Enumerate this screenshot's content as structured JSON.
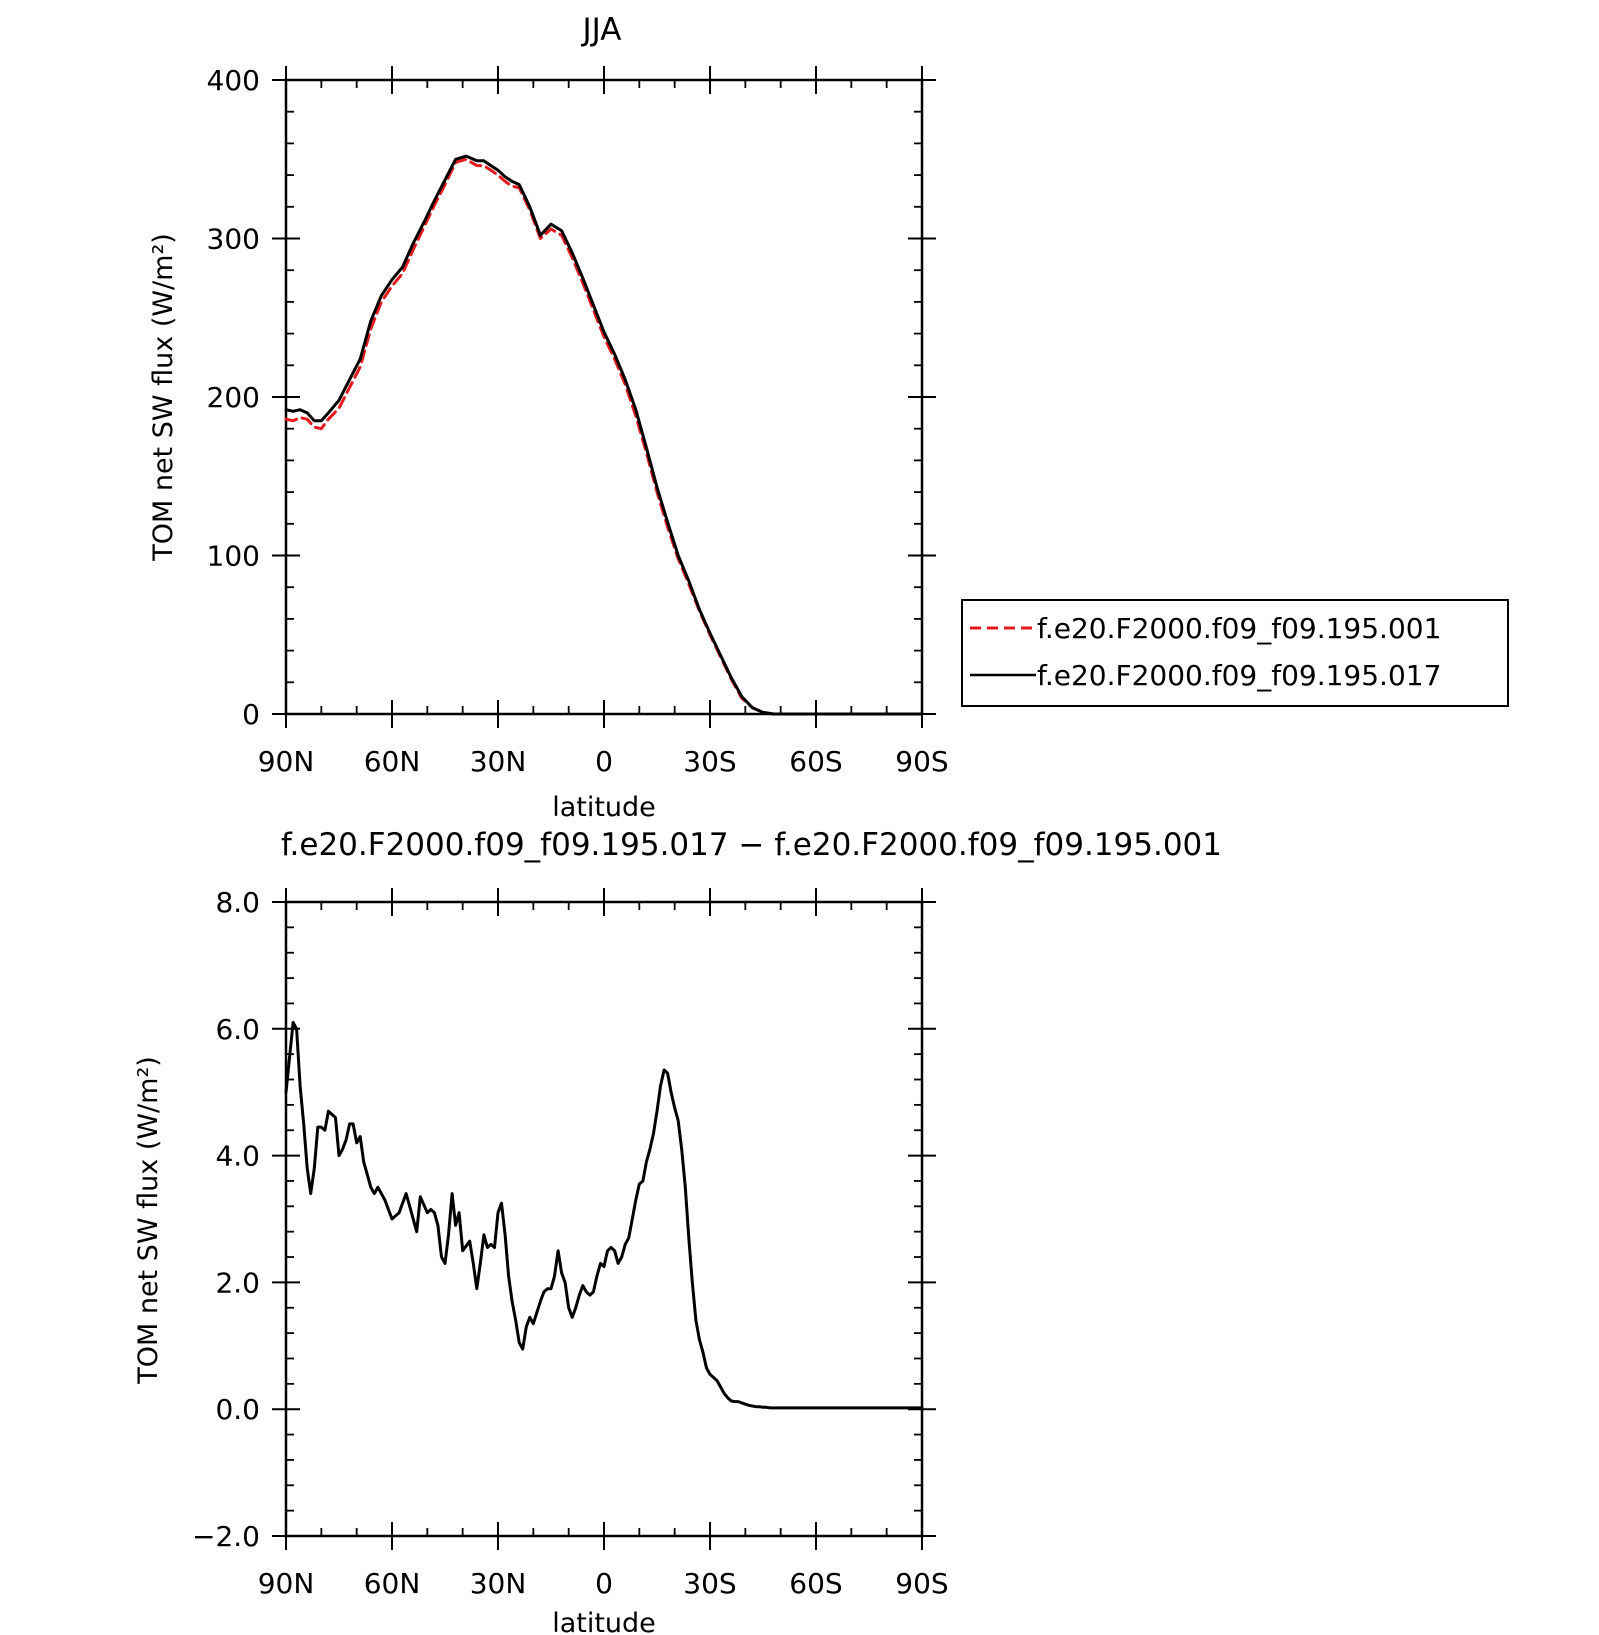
{
  "chart_data": [
    {
      "type": "line",
      "title": "JJA",
      "xlabel": "latitude",
      "ylabel": "TOM net SW flux (W/m²)",
      "xlim": [
        90,
        -90
      ],
      "ylim": [
        0,
        400
      ],
      "xticks": [
        90,
        60,
        30,
        0,
        -30,
        -60,
        -90
      ],
      "xtick_labels": [
        "90N",
        "60N",
        "30N",
        "0",
        "30S",
        "60S",
        "90S"
      ],
      "yticks": [
        0,
        100,
        200,
        300,
        400
      ],
      "ytick_labels": [
        "0",
        "100",
        "200",
        "300",
        "400"
      ],
      "grid": false,
      "legend_position": "outside-right",
      "series": [
        {
          "name": "f.e20.F2000.f09_f09.195.001",
          "color": "#e41a1c",
          "dash": true,
          "x": [
            90,
            88,
            86,
            84,
            82,
            80,
            78,
            75,
            72,
            69,
            66,
            63,
            60,
            57,
            54,
            51,
            48,
            45,
            42,
            39,
            36,
            34,
            32,
            30,
            28,
            26,
            24,
            21,
            18,
            15,
            12,
            9,
            6,
            3,
            0,
            -3,
            -6,
            -9,
            -12,
            -15,
            -18,
            -21,
            -24,
            -27,
            -30,
            -33,
            -36,
            -39,
            -42,
            -45,
            -48,
            -51,
            -54,
            -57,
            -60,
            -63,
            -66,
            -69,
            -72,
            -75,
            -78,
            -81,
            -84,
            -87,
            -90
          ],
          "y": [
            186,
            185,
            187,
            186,
            181,
            180,
            186,
            193,
            206,
            219,
            243,
            260,
            270,
            278,
            293,
            307,
            321,
            334,
            348,
            350,
            346,
            346,
            343,
            340,
            336,
            333,
            332,
            318,
            300,
            306,
            302,
            288,
            272,
            255,
            238,
            224,
            208,
            188,
            165,
            140,
            118,
            98,
            82,
            65,
            50,
            36,
            22,
            10,
            4,
            1,
            0,
            0,
            0,
            0,
            0,
            0,
            0,
            0,
            0,
            0,
            0,
            0,
            0,
            0,
            0
          ]
        },
        {
          "name": "f.e20.F2000.f09_f09.195.017",
          "color": "#000000",
          "dash": false,
          "x": [
            90,
            88,
            86,
            84,
            82,
            80,
            78,
            75,
            72,
            69,
            66,
            63,
            60,
            57,
            54,
            51,
            48,
            45,
            42,
            39,
            36,
            34,
            32,
            30,
            28,
            26,
            24,
            21,
            18,
            15,
            12,
            9,
            6,
            3,
            0,
            -3,
            -6,
            -9,
            -12,
            -15,
            -18,
            -21,
            -24,
            -27,
            -30,
            -33,
            -36,
            -39,
            -42,
            -45,
            -48,
            -51,
            -54,
            -57,
            -60,
            -63,
            -66,
            -69,
            -72,
            -75,
            -78,
            -81,
            -84,
            -87,
            -90
          ],
          "y": [
            192,
            191,
            192,
            190,
            185,
            185,
            190,
            198,
            211,
            224,
            248,
            264,
            274,
            282,
            297,
            310,
            324,
            337,
            350,
            352,
            349,
            349,
            346,
            343,
            339,
            336,
            334,
            320,
            302,
            309,
            305,
            291,
            275,
            258,
            241,
            227,
            211,
            192,
            168,
            143,
            121,
            100,
            84,
            66,
            51,
            37,
            23,
            11,
            4,
            1,
            0,
            0,
            0,
            0,
            0,
            0,
            0,
            0,
            0,
            0,
            0,
            0,
            0,
            0,
            0
          ]
        }
      ]
    },
    {
      "type": "line",
      "title": "f.e20.F2000.f09_f09.195.017 − f.e20.F2000.f09_f09.195.001",
      "xlabel": "latitude",
      "ylabel": "TOM net SW flux (W/m²)",
      "xlim": [
        90,
        -90
      ],
      "ylim": [
        -2,
        8
      ],
      "xticks": [
        90,
        60,
        30,
        0,
        -30,
        -60,
        -90
      ],
      "xtick_labels": [
        "90N",
        "60N",
        "30N",
        "0",
        "30S",
        "60S",
        "90S"
      ],
      "yticks": [
        -2,
        0,
        2,
        4,
        6,
        8
      ],
      "ytick_labels": [
        "−2.0",
        "0.0",
        "2.0",
        "4.0",
        "6.0",
        "8.0"
      ],
      "grid": false,
      "series": [
        {
          "color": "#000000",
          "x": [
            90,
            88,
            87,
            86,
            85,
            84,
            83,
            82,
            81,
            80,
            79,
            78,
            77,
            76,
            75,
            74,
            73,
            72,
            71,
            70,
            69,
            68,
            67,
            66,
            65,
            64,
            62,
            60,
            58,
            56,
            55,
            54,
            53,
            52,
            50,
            49,
            48,
            47,
            46,
            45,
            44,
            43,
            42,
            41,
            40,
            38,
            37,
            36,
            35,
            34,
            33,
            32,
            31,
            30,
            29,
            28,
            27,
            26,
            25,
            24,
            23,
            22,
            21,
            20,
            18,
            17,
            16,
            15,
            14,
            13,
            12,
            11,
            10,
            9,
            8,
            7,
            6,
            5,
            4,
            3,
            2,
            1,
            0,
            -1,
            -2,
            -3,
            -4,
            -5,
            -6,
            -7,
            -8,
            -9,
            -10,
            -11,
            -12,
            -13,
            -14,
            -15,
            -16,
            -17,
            -18,
            -19,
            -20,
            -21,
            -22,
            -23,
            -24,
            -25,
            -26,
            -27,
            -28,
            -29,
            -30,
            -31,
            -32,
            -33,
            -34,
            -35,
            -36,
            -37,
            -38,
            -39,
            -40,
            -41,
            -42,
            -43,
            -44,
            -45,
            -46,
            -47,
            -48,
            -49,
            -50,
            -52,
            -54,
            -56,
            -58,
            -60,
            -62,
            -64,
            -66,
            -70,
            -75,
            -80,
            -85,
            -90
          ],
          "y": [
            5.0,
            6.1,
            6.0,
            5.1,
            4.5,
            3.8,
            3.4,
            3.8,
            4.45,
            4.45,
            4.4,
            4.7,
            4.65,
            4.6,
            4.0,
            4.1,
            4.25,
            4.5,
            4.5,
            4.2,
            4.3,
            3.9,
            3.7,
            3.5,
            3.4,
            3.5,
            3.3,
            3.0,
            3.1,
            3.4,
            3.2,
            3.0,
            2.8,
            3.35,
            3.1,
            3.15,
            3.1,
            2.9,
            2.4,
            2.3,
            2.75,
            3.4,
            2.9,
            3.1,
            2.5,
            2.65,
            2.3,
            1.9,
            2.3,
            2.75,
            2.55,
            2.6,
            2.55,
            3.1,
            3.25,
            2.75,
            2.1,
            1.7,
            1.4,
            1.05,
            0.95,
            1.3,
            1.45,
            1.35,
            1.7,
            1.85,
            1.9,
            1.9,
            2.1,
            2.5,
            2.15,
            2.0,
            1.6,
            1.45,
            1.6,
            1.8,
            1.95,
            1.85,
            1.8,
            1.85,
            2.1,
            2.3,
            2.25,
            2.5,
            2.55,
            2.5,
            2.3,
            2.4,
            2.6,
            2.7,
            3.0,
            3.3,
            3.55,
            3.6,
            3.9,
            4.1,
            4.35,
            4.7,
            5.1,
            5.35,
            5.3,
            5.0,
            4.75,
            4.55,
            4.1,
            3.5,
            2.7,
            2.0,
            1.4,
            1.1,
            0.9,
            0.65,
            0.55,
            0.5,
            0.45,
            0.35,
            0.25,
            0.18,
            0.13,
            0.12,
            0.12,
            0.1,
            0.08,
            0.06,
            0.05,
            0.04,
            0.04,
            0.03,
            0.03,
            0.02,
            0.02,
            0.02,
            0.02,
            0.02,
            0.02,
            0.02,
            0.02,
            0.02,
            0.02,
            0.02,
            0.02,
            0.02,
            0.02,
            0.02,
            0.02,
            0.02
          ]
        }
      ]
    }
  ]
}
